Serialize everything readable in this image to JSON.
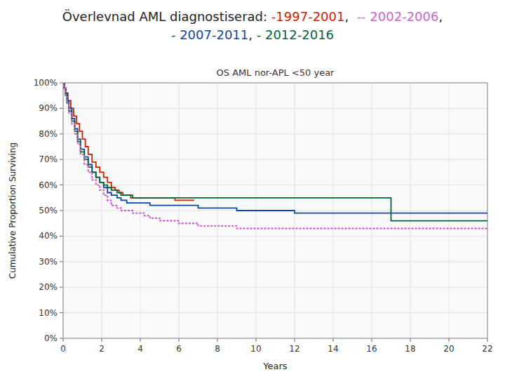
{
  "chart_data": {
    "type": "step",
    "title": [
      [
        {
          "text": "Överlevnad AML diagnostiserad: ",
          "color": "#222222"
        },
        {
          "text": "-1997-2001",
          "color": "#cc2200"
        },
        {
          "text": ",  ",
          "color": "#222222"
        },
        {
          "text": "-- 2002-2006",
          "color": "#cc66cc"
        },
        {
          "text": ",",
          "color": "#222222"
        }
      ],
      [
        {
          "text": "- 2007-2011",
          "color": "#1144aa"
        },
        {
          "text": ", ",
          "color": "#222222"
        },
        {
          "text": "- 2012-2016",
          "color": "#006633"
        }
      ]
    ],
    "subtitle": "OS AML nor-APL <50 year",
    "x_label": "Years",
    "y_label": "Cumulative Proportion Surviving",
    "xlim": [
      0,
      22
    ],
    "ylim": [
      0,
      1.0
    ],
    "xticks": [
      0,
      2,
      4,
      6,
      8,
      10,
      12,
      14,
      16,
      18,
      20,
      22
    ],
    "yticks": [
      {
        "value": 0.0,
        "label": "0%"
      },
      {
        "value": 0.1,
        "label": "10%"
      },
      {
        "value": 0.2,
        "label": "20%"
      },
      {
        "value": 0.3,
        "label": "30%"
      },
      {
        "value": 0.4,
        "label": "40%"
      },
      {
        "value": 0.5,
        "label": "50%"
      },
      {
        "value": 0.6,
        "label": "60%"
      },
      {
        "value": 0.7,
        "label": "70%"
      },
      {
        "value": 0.8,
        "label": "80%"
      },
      {
        "value": 0.9,
        "label": "90%"
      },
      {
        "value": 1.0,
        "label": "100%"
      }
    ],
    "grid": true,
    "series": [
      {
        "color": "#cc2200",
        "line_style": "solid",
        "x": [
          0,
          0.08,
          0.15,
          0.25,
          0.4,
          0.55,
          0.7,
          0.85,
          1.0,
          1.15,
          1.3,
          1.5,
          1.7,
          1.9,
          2.1,
          2.3,
          2.5,
          2.7,
          2.9,
          3.1,
          3.3,
          3.5,
          3.8,
          4.0,
          4.3,
          4.6,
          4.9,
          5.2,
          5.5,
          5.8,
          6.0,
          6.2,
          6.5,
          6.8
        ],
        "values": [
          1.0,
          0.98,
          0.96,
          0.93,
          0.9,
          0.87,
          0.84,
          0.81,
          0.78,
          0.75,
          0.72,
          0.69,
          0.67,
          0.65,
          0.63,
          0.61,
          0.59,
          0.58,
          0.57,
          0.56,
          0.56,
          0.55,
          0.55,
          0.55,
          0.55,
          0.55,
          0.55,
          0.55,
          0.55,
          0.54,
          0.54,
          0.54,
          0.54,
          0.54
        ]
      },
      {
        "color": "#1144aa",
        "line_style": "solid",
        "x": [
          0,
          0.05,
          0.12,
          0.2,
          0.3,
          0.45,
          0.6,
          0.75,
          0.9,
          1.1,
          1.3,
          1.5,
          1.7,
          1.9,
          2.1,
          2.3,
          2.5,
          2.8,
          3.0,
          3.3,
          3.6,
          3.9,
          4.2,
          4.5,
          5.0,
          5.5,
          6.0,
          6.5,
          7.0,
          7.5,
          8.0,
          9.0,
          10.0,
          11.0,
          12.0,
          13.0,
          14.0,
          15.0,
          16.0,
          17.0,
          18.0,
          19.0,
          20.0,
          21.0,
          22.0
        ],
        "values": [
          1.0,
          0.98,
          0.96,
          0.93,
          0.9,
          0.86,
          0.82,
          0.78,
          0.74,
          0.71,
          0.68,
          0.65,
          0.63,
          0.61,
          0.59,
          0.57,
          0.56,
          0.55,
          0.54,
          0.53,
          0.53,
          0.53,
          0.53,
          0.52,
          0.52,
          0.52,
          0.52,
          0.52,
          0.51,
          0.51,
          0.51,
          0.5,
          0.5,
          0.5,
          0.49,
          0.49,
          0.49,
          0.49,
          0.49,
          0.49,
          0.49,
          0.49,
          0.49,
          0.49,
          0.49
        ]
      },
      {
        "color": "#006633",
        "line_style": "solid",
        "x": [
          0,
          0.05,
          0.12,
          0.2,
          0.3,
          0.45,
          0.6,
          0.75,
          0.9,
          1.1,
          1.3,
          1.5,
          1.7,
          1.9,
          2.1,
          2.3,
          2.5,
          2.8,
          3.0,
          3.3,
          3.6,
          3.9,
          4.2,
          4.5,
          5.0,
          5.5,
          6.0,
          6.5,
          7.0,
          7.5,
          8.0,
          9.0,
          10.0,
          11.0,
          12.0,
          13.0,
          14.0,
          15.0,
          16.0,
          17.0,
          18.0,
          19.0,
          20.0,
          21.0,
          22.0
        ],
        "values": [
          1.0,
          0.98,
          0.95,
          0.92,
          0.89,
          0.85,
          0.81,
          0.77,
          0.73,
          0.7,
          0.67,
          0.65,
          0.63,
          0.61,
          0.6,
          0.59,
          0.58,
          0.57,
          0.56,
          0.56,
          0.55,
          0.55,
          0.55,
          0.55,
          0.55,
          0.55,
          0.55,
          0.55,
          0.55,
          0.55,
          0.55,
          0.55,
          0.55,
          0.55,
          0.55,
          0.55,
          0.55,
          0.55,
          0.55,
          0.46,
          0.46,
          0.46,
          0.46,
          0.46,
          0.46
        ]
      },
      {
        "color": "#cc66cc",
        "line_style": "dotted",
        "x": [
          0,
          0.05,
          0.12,
          0.2,
          0.3,
          0.45,
          0.6,
          0.75,
          0.9,
          1.1,
          1.3,
          1.5,
          1.7,
          1.9,
          2.1,
          2.3,
          2.5,
          2.8,
          3.0,
          3.3,
          3.6,
          3.9,
          4.2,
          4.5,
          5.0,
          5.5,
          6.0,
          6.5,
          7.0,
          7.5,
          8.0,
          9.0,
          10.0,
          11.0,
          12.0,
          13.0,
          14.0,
          15.0,
          16.0,
          17.0,
          18.0,
          19.0,
          20.0,
          21.0,
          22.0
        ],
        "values": [
          1.0,
          0.98,
          0.95,
          0.92,
          0.88,
          0.84,
          0.8,
          0.76,
          0.72,
          0.68,
          0.65,
          0.62,
          0.6,
          0.58,
          0.56,
          0.54,
          0.52,
          0.51,
          0.5,
          0.5,
          0.49,
          0.49,
          0.48,
          0.47,
          0.46,
          0.46,
          0.45,
          0.45,
          0.44,
          0.44,
          0.44,
          0.43,
          0.43,
          0.43,
          0.43,
          0.43,
          0.43,
          0.43,
          0.43,
          0.43,
          0.43,
          0.43,
          0.43,
          0.43,
          0.43
        ]
      }
    ]
  }
}
